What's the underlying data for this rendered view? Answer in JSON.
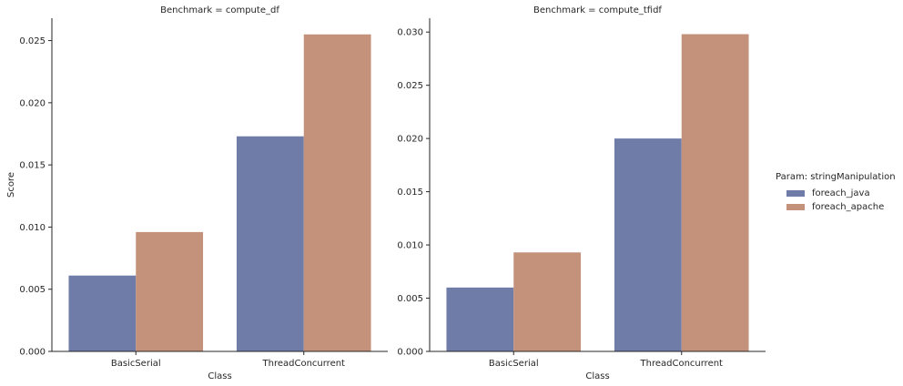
{
  "colors": {
    "foreach_java": "#6f7ca8",
    "foreach_apache": "#c4927a"
  },
  "chart_data": [
    {
      "type": "bar",
      "title": "Benchmark = compute_df",
      "xlabel": "Class",
      "ylabel": "Score",
      "categories": [
        "BasicSerial",
        "ThreadConcurrent"
      ],
      "ylim": [
        0,
        0.0268
      ],
      "yticks": [
        "0.000",
        "0.005",
        "0.010",
        "0.015",
        "0.020",
        "0.025"
      ],
      "series": [
        {
          "name": "foreach_java",
          "values": [
            0.0061,
            0.0173
          ]
        },
        {
          "name": "foreach_apache",
          "values": [
            0.0096,
            0.0255
          ]
        }
      ]
    },
    {
      "type": "bar",
      "title": "Benchmark = compute_tfidf",
      "xlabel": "Class",
      "ylabel": "",
      "categories": [
        "BasicSerial",
        "ThreadConcurrent"
      ],
      "ylim": [
        0,
        0.0313
      ],
      "yticks": [
        "0.000",
        "0.005",
        "0.010",
        "0.015",
        "0.020",
        "0.025",
        "0.030"
      ],
      "series": [
        {
          "name": "foreach_java",
          "values": [
            0.006,
            0.02
          ]
        },
        {
          "name": "foreach_apache",
          "values": [
            0.0093,
            0.0298
          ]
        }
      ]
    }
  ],
  "legend": {
    "title": "Param: stringManipulation",
    "items": [
      "foreach_java",
      "foreach_apache"
    ],
    "placement": "right"
  }
}
